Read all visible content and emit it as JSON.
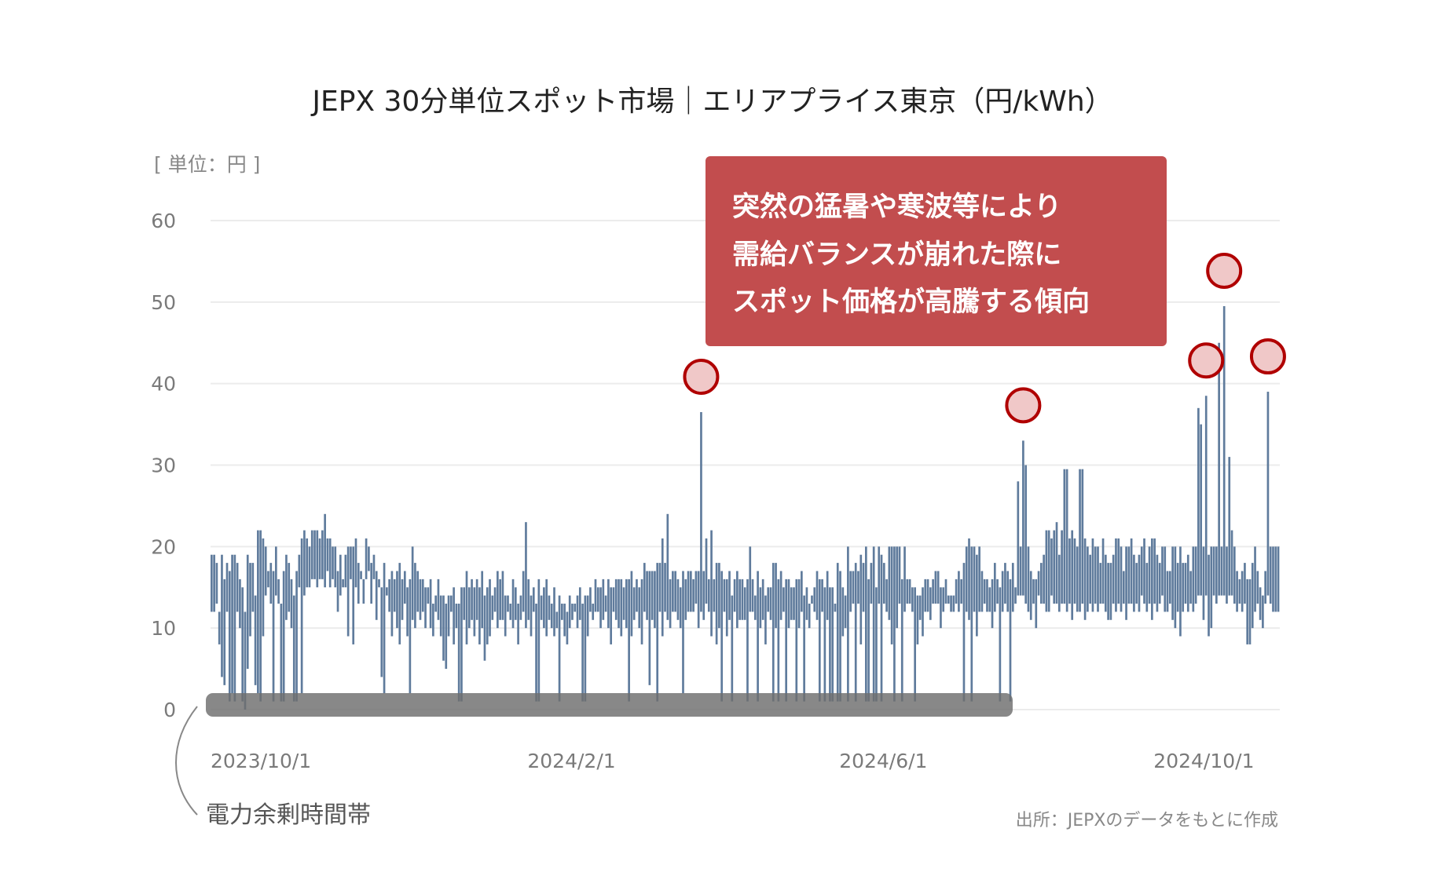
{
  "chart_data": {
    "type": "bar",
    "subtype": "daily range (min–max) bars",
    "title": "JEPX 30分単位スポット市場｜エリアプライス東京（円/kWh）",
    "unit_label": "[ 単位：円 ]",
    "source": "出所：JEPXのデータをもとに作成",
    "ylim": [
      0,
      60
    ],
    "yticks": [
      "0",
      "10",
      "20",
      "30",
      "40",
      "50",
      "60"
    ],
    "x_range": [
      "2023/10/1",
      "2024/11/19"
    ],
    "xticks": [
      "2023/10/1",
      "2024/2/1",
      "2024/6/1",
      "2024/10/1"
    ],
    "grid": true,
    "bar_color": "#5f7b9c",
    "annotation": {
      "lines": [
        "突然の猛暑や寒波等により",
        "需給バランスが崩れた際に",
        "スポット価格が高騰する傾向"
      ],
      "color": "#c24d4e"
    },
    "highlight_marker_color": "#b00000",
    "surplus_band": {
      "label": "電力余剰時間帯",
      "range": [
        "2023/10/1",
        "2024/8/7"
      ],
      "value": 0
    },
    "max": [
      19,
      19,
      18,
      12,
      19,
      16,
      18,
      17,
      19,
      19,
      18,
      16,
      15,
      12,
      19,
      18,
      18,
      14,
      22,
      22,
      21,
      20,
      17,
      18,
      17,
      20,
      16,
      13,
      17,
      19,
      18,
      16,
      14,
      17,
      19,
      21,
      22,
      21,
      20,
      22,
      22,
      22,
      21,
      22,
      24,
      21,
      21,
      20,
      20,
      17,
      19,
      16,
      19,
      20,
      20,
      20,
      21,
      18,
      17,
      16,
      21,
      20,
      18,
      19,
      17,
      16,
      15,
      18,
      15,
      16,
      17,
      16,
      17,
      18,
      16,
      17,
      15,
      16,
      20,
      18,
      17,
      16,
      16,
      15,
      15,
      16,
      13,
      14,
      16,
      14,
      14,
      13,
      14,
      14,
      15,
      13,
      13,
      15,
      15,
      17,
      15,
      16,
      15,
      16,
      15,
      17,
      14,
      15,
      16,
      14,
      15,
      17,
      16,
      17,
      14,
      14,
      13,
      16,
      15,
      13,
      14,
      17,
      23,
      16,
      14,
      15,
      13,
      16,
      14,
      15,
      16,
      14,
      13,
      15,
      12,
      14,
      13,
      13,
      12,
      14,
      13,
      13,
      14,
      15,
      13,
      14,
      14,
      15,
      13,
      16,
      15,
      15,
      16,
      14,
      16,
      15,
      15,
      16,
      16,
      16,
      15,
      16,
      16,
      17,
      15,
      16,
      15,
      16,
      18,
      17,
      17,
      17,
      17,
      18,
      18,
      21,
      18,
      24,
      16,
      17,
      17,
      16,
      15,
      17,
      16,
      17,
      17,
      16,
      17,
      17,
      36.5,
      17,
      21,
      16,
      22,
      16,
      18,
      18,
      17,
      16,
      16,
      17,
      14,
      16,
      17,
      16,
      16,
      15,
      16,
      20,
      16,
      14,
      17,
      15,
      16,
      14,
      15,
      15,
      18,
      18,
      16,
      17,
      15,
      16,
      16,
      15,
      15,
      16,
      16,
      17,
      14,
      15,
      13,
      14,
      15,
      17,
      16,
      16,
      15,
      17,
      15,
      15,
      13,
      18,
      17,
      15,
      14,
      20,
      17,
      17,
      18,
      17,
      19,
      18,
      20,
      16,
      18,
      20,
      15,
      20,
      19,
      18,
      16,
      20,
      20,
      20,
      20,
      20,
      16,
      20,
      16,
      16,
      15,
      15,
      14,
      14,
      15,
      16,
      16,
      15,
      16,
      17,
      17,
      15,
      15,
      16,
      14,
      14,
      14,
      16,
      17,
      16,
      18,
      20,
      21,
      20,
      20,
      19,
      20,
      17,
      16,
      16,
      15,
      16,
      18,
      16,
      15,
      17,
      18,
      17,
      16,
      18,
      15,
      28,
      20,
      33,
      30,
      20,
      17,
      16,
      16,
      17,
      18,
      19,
      22,
      22,
      21,
      22,
      23,
      19,
      22,
      29.5,
      29.5,
      21,
      22,
      21,
      20,
      29.5,
      29.5,
      21,
      20,
      19,
      21,
      20,
      20,
      18,
      21,
      19,
      18,
      18,
      19,
      21,
      21,
      20,
      17,
      20,
      20,
      21,
      19,
      18,
      19,
      20,
      21,
      18,
      20,
      21,
      21,
      19,
      18,
      20,
      20,
      17,
      17,
      20,
      20,
      18,
      20,
      18,
      18,
      19,
      17,
      20,
      20,
      37,
      35,
      20,
      38.5,
      19,
      20,
      20,
      20,
      45,
      20,
      49.5,
      20,
      31,
      22,
      20,
      17,
      16,
      17,
      18,
      16,
      16,
      18,
      20,
      17,
      15,
      14,
      17,
      39,
      20,
      20,
      20,
      20
    ],
    "min": [
      12,
      12,
      13,
      8,
      4,
      3,
      12,
      1,
      2,
      1,
      12,
      10,
      1,
      0,
      5,
      9,
      12,
      3,
      2,
      1,
      9,
      14,
      15,
      13,
      1,
      14,
      13,
      1,
      1,
      11,
      12,
      10,
      1,
      1,
      15,
      2,
      14,
      15,
      15,
      16,
      16,
      15,
      16,
      16,
      15,
      17,
      15,
      16,
      15,
      12,
      14,
      15,
      15,
      9,
      16,
      8,
      15,
      13,
      16,
      13,
      16,
      17,
      13,
      16,
      11,
      15,
      4,
      2,
      14,
      12,
      9,
      12,
      10,
      8,
      11,
      13,
      9,
      2,
      11,
      10,
      12,
      11,
      12,
      10,
      13,
      10,
      9,
      12,
      11,
      9,
      6,
      5,
      9,
      12,
      8,
      10,
      1,
      1,
      11,
      8,
      10,
      11,
      9,
      11,
      8,
      10,
      6,
      8,
      9,
      11,
      12,
      10,
      11,
      11,
      9,
      12,
      11,
      10,
      11,
      8,
      11,
      12,
      10,
      11,
      9,
      12,
      1,
      1,
      11,
      10,
      9,
      11,
      10,
      9,
      10,
      1,
      11,
      9,
      8,
      10,
      11,
      12,
      10,
      11,
      1,
      1,
      9,
      12,
      11,
      12,
      12,
      10,
      11,
      12,
      10,
      8,
      12,
      11,
      10,
      9,
      11,
      10,
      1,
      9,
      11,
      12,
      10,
      8,
      12,
      11,
      3,
      11,
      10,
      1,
      12,
      9,
      12,
      11,
      10,
      12,
      12,
      11,
      10,
      2,
      11,
      12,
      12,
      12,
      13,
      10,
      12,
      11,
      13,
      12,
      9,
      12,
      8,
      10,
      1,
      12,
      9,
      11,
      1,
      12,
      10,
      11,
      11,
      11,
      1,
      12,
      12,
      11,
      1,
      10,
      11,
      8,
      12,
      11,
      1,
      10,
      1,
      11,
      12,
      1,
      10,
      11,
      11,
      1,
      10,
      12,
      1,
      11,
      10,
      13,
      12,
      11,
      1,
      12,
      1,
      11,
      1,
      1,
      12,
      1,
      1,
      9,
      10,
      1,
      12,
      13,
      1,
      13,
      8,
      12,
      1,
      1,
      13,
      1,
      1,
      13,
      1,
      13,
      12,
      11,
      8,
      1,
      10,
      13,
      1,
      12,
      13,
      13,
      12,
      1,
      8,
      11,
      9,
      12,
      12,
      11,
      13,
      13,
      13,
      10,
      12,
      13,
      13,
      12,
      12,
      13,
      12,
      13,
      1,
      12,
      11,
      1,
      12,
      9,
      12,
      12,
      13,
      12,
      12,
      10,
      12,
      13,
      1,
      12,
      13,
      12,
      1,
      12,
      13,
      14,
      14,
      14,
      13,
      12,
      11,
      13,
      10,
      14,
      13,
      13,
      12,
      12,
      14,
      13,
      13,
      12,
      13,
      13,
      12,
      13,
      11,
      13,
      12,
      12,
      13,
      11,
      12,
      13,
      12,
      13,
      12,
      13,
      13,
      12,
      11,
      11,
      13,
      12,
      13,
      12,
      13,
      11,
      13,
      13,
      12,
      13,
      12,
      14,
      13,
      12,
      13,
      11,
      13,
      12,
      13,
      14,
      12,
      12,
      13,
      11,
      10,
      12,
      9,
      12,
      13,
      12,
      13,
      12,
      13,
      14,
      14,
      11,
      14,
      9,
      10,
      14,
      13,
      14,
      14,
      14,
      13,
      14,
      14,
      13,
      12,
      13,
      12,
      13,
      8,
      8,
      10,
      12,
      13,
      11,
      10,
      13,
      14,
      13,
      12,
      12,
      12
    ],
    "highlighted_spikes": [
      {
        "date_index_label": "2024/4",
        "value": 36.5
      },
      {
        "date_index_label": "2024/8",
        "value": 33
      },
      {
        "date_index_label": "2024/10",
        "value": 38.5
      },
      {
        "date_index_label": "2024/10",
        "value": 49.5
      },
      {
        "date_index_label": "2024/11",
        "value": 39
      }
    ]
  }
}
